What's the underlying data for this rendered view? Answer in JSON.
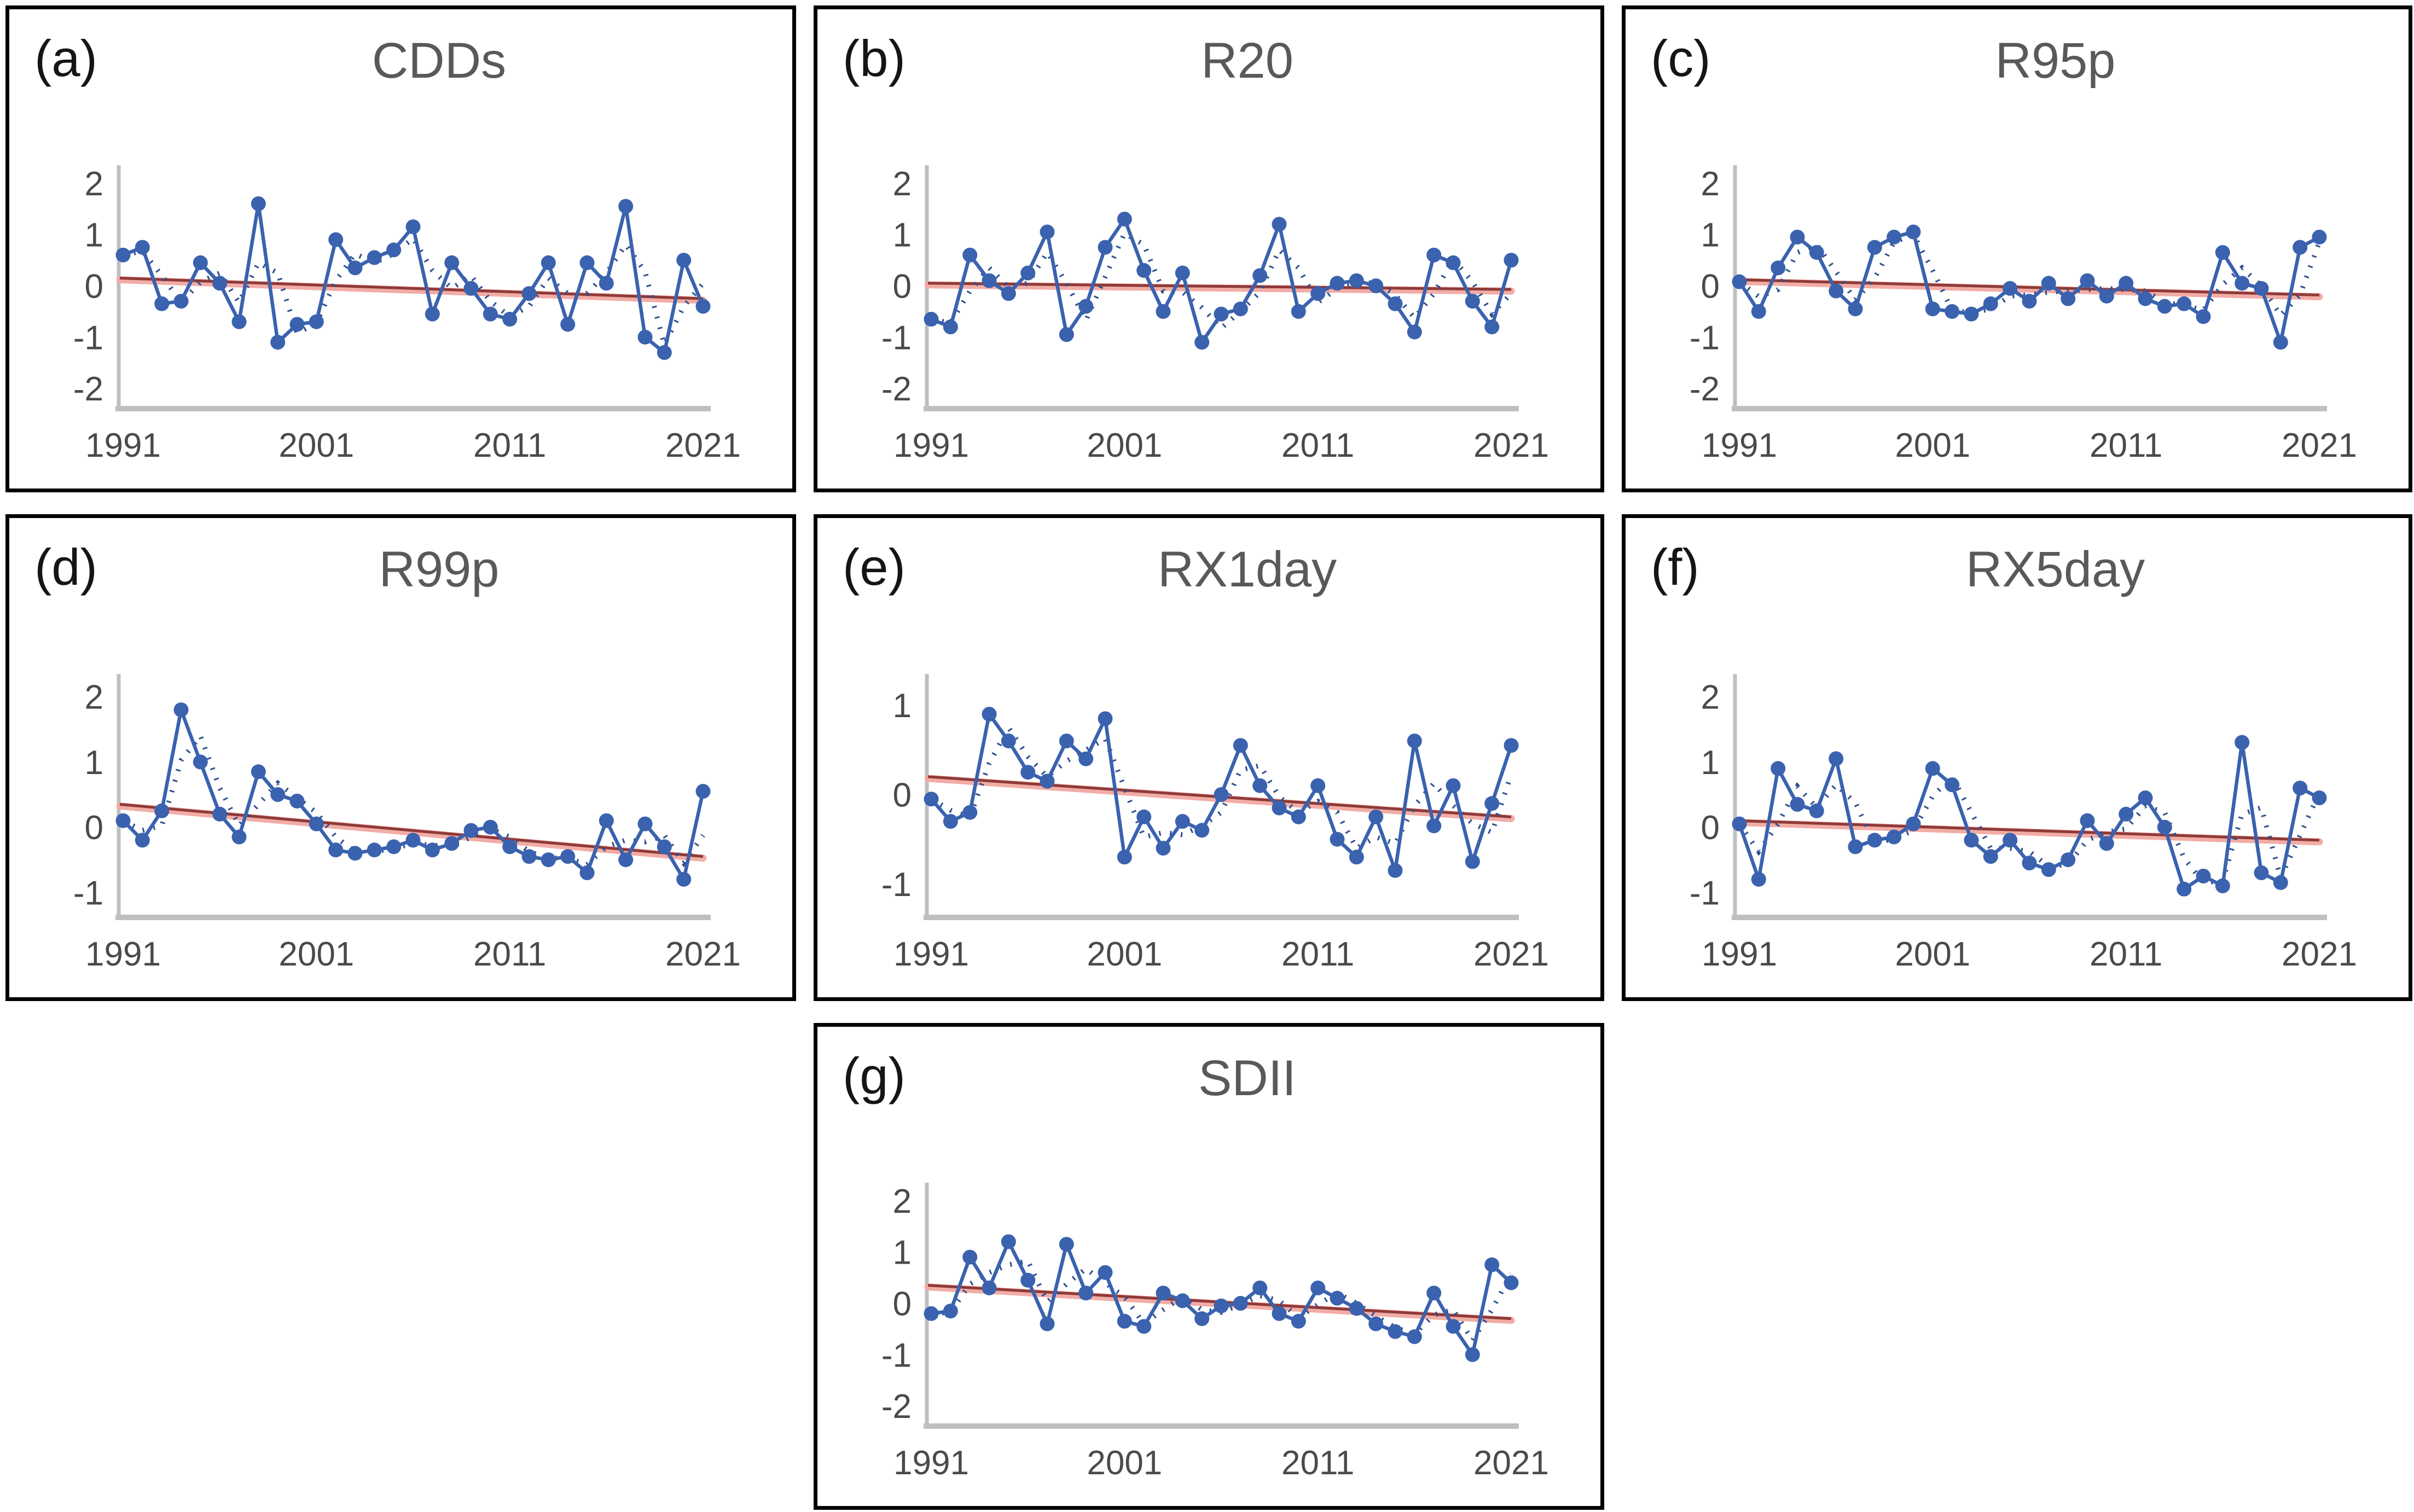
{
  "figure_title": "",
  "colors": {
    "series_blue": "#3A62AE",
    "moving_avg_blue": "#2F4F8F",
    "trend_dark_red": "#8E3A38",
    "trend_pink": "#F2ACA6",
    "axis_gray": "#BFBFBF",
    "tick_text_gray": "#4a4a4a",
    "title_gray": "#595959",
    "panel_border": "#000000"
  },
  "chart_data": [
    {
      "type": "line",
      "panel_label": "(a)",
      "title": "CDDs",
      "x_range": [
        1991,
        2021
      ],
      "x_ticks": [
        "1991",
        "2001",
        "2011",
        "2021"
      ],
      "y_ticks": [
        "2",
        "1",
        "0",
        "-1",
        "-2"
      ],
      "y_axis_range": [
        -2.35,
        2.35
      ],
      "grid": false,
      "legend": "none",
      "series_notes": {
        "solid": "annual standardized anomaly with markers",
        "dotted": "smoothed (moving average)",
        "red": "linear trend"
      },
      "values": [
        0.6,
        0.75,
        -0.35,
        -0.3,
        0.45,
        0.05,
        -0.7,
        1.6,
        -1.1,
        -0.75,
        -0.7,
        0.9,
        0.35,
        0.55,
        0.7,
        1.15,
        -0.55,
        0.45,
        -0.05,
        -0.55,
        -0.65,
        -0.15,
        0.45,
        -0.75,
        0.45,
        0.05,
        1.55,
        -1.0,
        -1.3,
        0.5,
        -0.4
      ],
      "trend": {
        "y_1991": 0.15,
        "y_2021": -0.25
      }
    },
    {
      "type": "line",
      "panel_label": "(b)",
      "title": "R20",
      "x_range": [
        1991,
        2021
      ],
      "x_ticks": [
        "1991",
        "2001",
        "2011",
        "2021"
      ],
      "y_ticks": [
        "2",
        "1",
        "0",
        "-1",
        "-2"
      ],
      "y_axis_range": [
        -2.35,
        2.35
      ],
      "grid": false,
      "legend": "none",
      "series_notes": {
        "solid": "annual standardized anomaly with markers",
        "dotted": "smoothed (moving average)",
        "red": "linear trend"
      },
      "values": [
        -0.65,
        -0.8,
        0.6,
        0.1,
        -0.15,
        0.25,
        1.05,
        -0.95,
        -0.4,
        0.75,
        1.3,
        0.3,
        -0.5,
        0.25,
        -1.1,
        -0.55,
        -0.45,
        0.2,
        1.2,
        -0.5,
        -0.15,
        0.05,
        0.1,
        0.0,
        -0.35,
        -0.9,
        0.6,
        0.45,
        -0.3,
        -0.8,
        0.5
      ],
      "trend": {
        "y_1991": 0.05,
        "y_2021": -0.07
      }
    },
    {
      "type": "line",
      "panel_label": "(c)",
      "title": "R95p",
      "x_range": [
        1991,
        2021
      ],
      "x_ticks": [
        "1991",
        "2001",
        "2011",
        "2021"
      ],
      "y_ticks": [
        "2",
        "1",
        "0",
        "-1",
        "-2"
      ],
      "y_axis_range": [
        -2.35,
        2.35
      ],
      "grid": false,
      "legend": "none",
      "series_notes": {
        "solid": "annual standardized anomaly with markers",
        "dotted": "smoothed (moving average)",
        "red": "linear trend"
      },
      "values": [
        0.08,
        -0.5,
        0.35,
        0.95,
        0.65,
        -0.1,
        -0.45,
        0.75,
        0.95,
        1.05,
        -0.45,
        -0.5,
        -0.55,
        -0.35,
        -0.05,
        -0.3,
        0.05,
        -0.25,
        0.1,
        -0.2,
        0.05,
        -0.25,
        -0.4,
        -0.35,
        -0.6,
        0.65,
        0.05,
        -0.05,
        -1.1,
        0.75,
        0.95
      ],
      "trend": {
        "y_1991": 0.12,
        "y_2021": -0.18
      }
    },
    {
      "type": "line",
      "panel_label": "(d)",
      "title": "R99p",
      "x_range": [
        1991,
        2021
      ],
      "x_ticks": [
        "1991",
        "2001",
        "2011",
        "2021"
      ],
      "y_ticks": [
        "2",
        "1",
        "0",
        "-1"
      ],
      "y_axis_range": [
        -1.35,
        2.35
      ],
      "grid": false,
      "legend": "none",
      "series_notes": {
        "solid": "annual standardized anomaly with markers",
        "dotted": "smoothed (moving average)",
        "red": "linear trend"
      },
      "values": [
        0.1,
        -0.2,
        0.25,
        1.8,
        1.0,
        0.2,
        -0.15,
        0.85,
        0.5,
        0.4,
        0.05,
        -0.35,
        -0.4,
        -0.35,
        -0.3,
        -0.2,
        -0.35,
        -0.25,
        -0.05,
        0.0,
        -0.3,
        -0.45,
        -0.5,
        -0.45,
        -0.7,
        0.1,
        -0.5,
        0.05,
        -0.3,
        -0.8,
        0.55
      ],
      "trend": {
        "y_1991": 0.35,
        "y_2021": -0.45
      }
    },
    {
      "type": "line",
      "panel_label": "(e)",
      "title": "RX1day",
      "x_range": [
        1991,
        2021
      ],
      "x_ticks": [
        "1991",
        "2001",
        "2011",
        "2021"
      ],
      "y_ticks": [
        "1",
        "0",
        "-1"
      ],
      "y_axis_range": [
        -1.35,
        1.35
      ],
      "grid": false,
      "legend": "none",
      "series_notes": {
        "solid": "annual standardized anomaly with markers",
        "dotted": "smoothed (moving average)",
        "red": "linear trend"
      },
      "values": [
        -0.05,
        -0.3,
        -0.2,
        0.9,
        0.6,
        0.25,
        0.15,
        0.6,
        0.4,
        0.85,
        -0.7,
        -0.25,
        -0.6,
        -0.3,
        -0.4,
        0.0,
        0.55,
        0.1,
        -0.15,
        -0.25,
        0.1,
        -0.5,
        -0.7,
        -0.25,
        -0.85,
        0.6,
        -0.35,
        0.1,
        -0.75,
        -0.1,
        0.55
      ],
      "trend": {
        "y_1991": 0.2,
        "y_2021": -0.25
      }
    },
    {
      "type": "line",
      "panel_label": "(f)",
      "title": "RX5day",
      "x_range": [
        1991,
        2021
      ],
      "x_ticks": [
        "1991",
        "2001",
        "2011",
        "2021"
      ],
      "y_ticks": [
        "2",
        "1",
        "0",
        "-1"
      ],
      "y_axis_range": [
        -1.35,
        2.35
      ],
      "grid": false,
      "legend": "none",
      "series_notes": {
        "solid": "annual standardized anomaly with markers",
        "dotted": "smoothed (moving average)",
        "red": "linear trend"
      },
      "values": [
        0.05,
        -0.8,
        0.9,
        0.35,
        0.25,
        1.05,
        -0.3,
        -0.2,
        -0.15,
        0.05,
        0.9,
        0.65,
        -0.2,
        -0.45,
        -0.2,
        -0.55,
        -0.65,
        -0.5,
        0.1,
        -0.25,
        0.2,
        0.45,
        0.0,
        -0.95,
        -0.75,
        -0.9,
        1.3,
        -0.7,
        -0.85,
        0.6,
        0.45
      ],
      "trend": {
        "y_1991": 0.1,
        "y_2021": -0.2
      }
    },
    {
      "type": "line",
      "panel_label": "(g)",
      "title": "SDII",
      "x_range": [
        1991,
        2021
      ],
      "x_ticks": [
        "1991",
        "2001",
        "2011",
        "2021"
      ],
      "y_ticks": [
        "2",
        "1",
        "0",
        "-1",
        "-2"
      ],
      "y_axis_range": [
        -2.35,
        2.35
      ],
      "grid": false,
      "legend": "none",
      "series_notes": {
        "solid": "annual standardized anomaly with markers",
        "dotted": "smoothed (moving average)",
        "red": "linear trend"
      },
      "values": [
        -0.2,
        -0.15,
        0.9,
        0.3,
        1.2,
        0.45,
        -0.4,
        1.15,
        0.2,
        0.6,
        -0.35,
        -0.45,
        0.2,
        0.05,
        -0.3,
        -0.05,
        0.0,
        0.3,
        -0.2,
        -0.35,
        0.3,
        0.1,
        -0.1,
        -0.4,
        -0.55,
        -0.65,
        0.2,
        -0.45,
        -1.0,
        0.75,
        0.4
      ],
      "trend": {
        "y_1991": 0.35,
        "y_2021": -0.3
      }
    }
  ]
}
